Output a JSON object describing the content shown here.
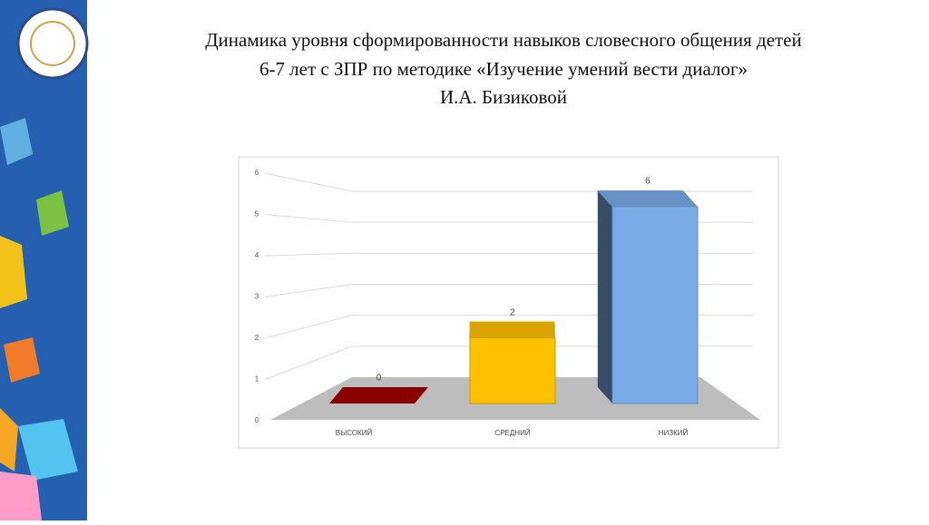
{
  "chart_data": {
    "type": "bar3d",
    "title": [
      "Динамика уровня сформированности навыков словесного общения детей",
      "6-7 лет с ЗПР по методике «Изучение умений вести диалог»",
      "И.А. Бизиковой"
    ],
    "categories": [
      "ВЫСОКИЙ",
      "СРЕДНИЙ",
      "НИЗКИЙ"
    ],
    "values": [
      0,
      2,
      6
    ],
    "colors": [
      "#a00000",
      "#ffc000",
      "#7aaae8"
    ],
    "ylim": [
      0,
      6
    ],
    "yticks": [
      0,
      1,
      2,
      3,
      4,
      5,
      6
    ],
    "grid": true
  }
}
